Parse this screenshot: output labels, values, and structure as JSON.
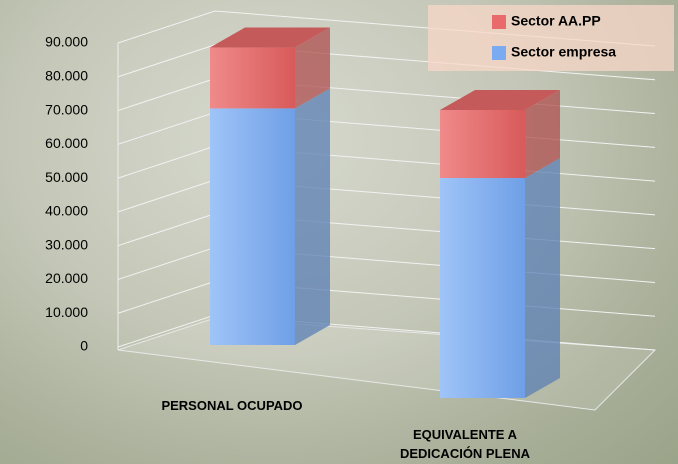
{
  "chart_data": {
    "type": "bar3d_stacked",
    "categories": [
      "PERSONAL OCUPADO",
      "EQUIVALENTE A DEDICACIÓN PLENA"
    ],
    "series": [
      {
        "name": "Sector empresa",
        "color": "#7aaaf0",
        "values": [
          70000,
          55000
        ]
      },
      {
        "name": "Sector AA.PP",
        "color": "#e86a6a",
        "values": [
          18000,
          17000
        ]
      }
    ],
    "ylim": [
      0,
      90000
    ],
    "yticks": [
      0,
      {
        "value": 10000,
        "label": "10.000"
      },
      {
        "value": 20000,
        "label": "20.000"
      },
      {
        "value": 30000,
        "label": "30.000"
      },
      {
        "value": 40000,
        "label": "40.000"
      },
      {
        "value": 50000,
        "label": "50.000"
      },
      {
        "value": 60000,
        "label": "60.000"
      },
      {
        "value": 70000,
        "label": "70.000"
      },
      {
        "value": 80000,
        "label": "80.000"
      },
      {
        "value": 90000,
        "label": "90.000"
      }
    ],
    "grid": true,
    "legend": "upper right"
  }
}
